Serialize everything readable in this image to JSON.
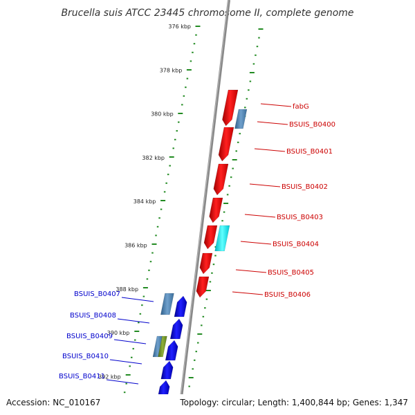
{
  "title": "Brucella suis ATCC 23445 chromosome II, complete genome",
  "footer": {
    "accession": "Accession: NC_010167",
    "topology": "Topology: circular; Length: 1,400,844 bp; Genes: 1,347"
  },
  "ruler": {
    "labels": [
      "376 kbp",
      "378 kbp",
      "380 kbp",
      "382 kbp",
      "384 kbp",
      "386 kbp",
      "388 kbp",
      "390 kbp",
      "392 kbp"
    ]
  },
  "genes_right": [
    {
      "name": "fabG"
    },
    {
      "name": "BSUIS_B0400"
    },
    {
      "name": "BSUIS_B0401"
    },
    {
      "name": "BSUIS_B0402"
    },
    {
      "name": "BSUIS_B0403"
    },
    {
      "name": "BSUIS_B0404"
    },
    {
      "name": "BSUIS_B0405"
    },
    {
      "name": "BSUIS_B0406"
    }
  ],
  "genes_left": [
    {
      "name": "BSUIS_B0407"
    },
    {
      "name": "BSUIS_B0408"
    },
    {
      "name": "BSUIS_B0409"
    },
    {
      "name": "BSUIS_B0410"
    },
    {
      "name": "BSUIS_B0411"
    }
  ],
  "colors": {
    "forward_gene": "#ff0000",
    "reverse_gene": "#0000ff",
    "feature_steelblue": "#4682b4",
    "feature_cyan": "#00e5ee",
    "feature_olive": "#6b8e23",
    "backbone": "#888888",
    "ticks": "#228b22",
    "label_right": "#cc0000",
    "label_left": "#0000cc"
  }
}
